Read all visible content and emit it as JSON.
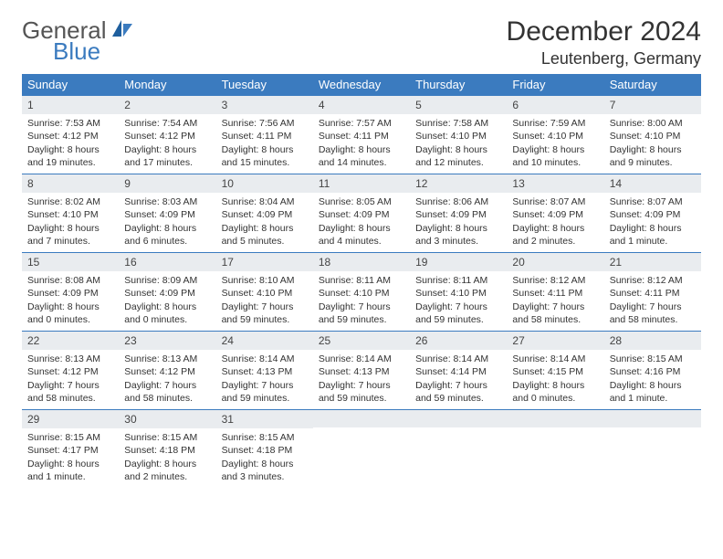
{
  "brand": {
    "top": "General",
    "bottom": "Blue"
  },
  "title": "December 2024",
  "location": "Leutenberg, Germany",
  "colors": {
    "header_bg": "#3b7bbf",
    "header_text": "#ffffff",
    "daynum_bg": "#e9ecef",
    "row_divider": "#3b7bbf",
    "body_text": "#333333",
    "page_bg": "#ffffff"
  },
  "weekdays": [
    "Sunday",
    "Monday",
    "Tuesday",
    "Wednesday",
    "Thursday",
    "Friday",
    "Saturday"
  ],
  "days": [
    {
      "n": "1",
      "sunrise": "Sunrise: 7:53 AM",
      "sunset": "Sunset: 4:12 PM",
      "daylight": "Daylight: 8 hours and 19 minutes."
    },
    {
      "n": "2",
      "sunrise": "Sunrise: 7:54 AM",
      "sunset": "Sunset: 4:12 PM",
      "daylight": "Daylight: 8 hours and 17 minutes."
    },
    {
      "n": "3",
      "sunrise": "Sunrise: 7:56 AM",
      "sunset": "Sunset: 4:11 PM",
      "daylight": "Daylight: 8 hours and 15 minutes."
    },
    {
      "n": "4",
      "sunrise": "Sunrise: 7:57 AM",
      "sunset": "Sunset: 4:11 PM",
      "daylight": "Daylight: 8 hours and 14 minutes."
    },
    {
      "n": "5",
      "sunrise": "Sunrise: 7:58 AM",
      "sunset": "Sunset: 4:10 PM",
      "daylight": "Daylight: 8 hours and 12 minutes."
    },
    {
      "n": "6",
      "sunrise": "Sunrise: 7:59 AM",
      "sunset": "Sunset: 4:10 PM",
      "daylight": "Daylight: 8 hours and 10 minutes."
    },
    {
      "n": "7",
      "sunrise": "Sunrise: 8:00 AM",
      "sunset": "Sunset: 4:10 PM",
      "daylight": "Daylight: 8 hours and 9 minutes."
    },
    {
      "n": "8",
      "sunrise": "Sunrise: 8:02 AM",
      "sunset": "Sunset: 4:10 PM",
      "daylight": "Daylight: 8 hours and 7 minutes."
    },
    {
      "n": "9",
      "sunrise": "Sunrise: 8:03 AM",
      "sunset": "Sunset: 4:09 PM",
      "daylight": "Daylight: 8 hours and 6 minutes."
    },
    {
      "n": "10",
      "sunrise": "Sunrise: 8:04 AM",
      "sunset": "Sunset: 4:09 PM",
      "daylight": "Daylight: 8 hours and 5 minutes."
    },
    {
      "n": "11",
      "sunrise": "Sunrise: 8:05 AM",
      "sunset": "Sunset: 4:09 PM",
      "daylight": "Daylight: 8 hours and 4 minutes."
    },
    {
      "n": "12",
      "sunrise": "Sunrise: 8:06 AM",
      "sunset": "Sunset: 4:09 PM",
      "daylight": "Daylight: 8 hours and 3 minutes."
    },
    {
      "n": "13",
      "sunrise": "Sunrise: 8:07 AM",
      "sunset": "Sunset: 4:09 PM",
      "daylight": "Daylight: 8 hours and 2 minutes."
    },
    {
      "n": "14",
      "sunrise": "Sunrise: 8:07 AM",
      "sunset": "Sunset: 4:09 PM",
      "daylight": "Daylight: 8 hours and 1 minute."
    },
    {
      "n": "15",
      "sunrise": "Sunrise: 8:08 AM",
      "sunset": "Sunset: 4:09 PM",
      "daylight": "Daylight: 8 hours and 0 minutes."
    },
    {
      "n": "16",
      "sunrise": "Sunrise: 8:09 AM",
      "sunset": "Sunset: 4:09 PM",
      "daylight": "Daylight: 8 hours and 0 minutes."
    },
    {
      "n": "17",
      "sunrise": "Sunrise: 8:10 AM",
      "sunset": "Sunset: 4:10 PM",
      "daylight": "Daylight: 7 hours and 59 minutes."
    },
    {
      "n": "18",
      "sunrise": "Sunrise: 8:11 AM",
      "sunset": "Sunset: 4:10 PM",
      "daylight": "Daylight: 7 hours and 59 minutes."
    },
    {
      "n": "19",
      "sunrise": "Sunrise: 8:11 AM",
      "sunset": "Sunset: 4:10 PM",
      "daylight": "Daylight: 7 hours and 59 minutes."
    },
    {
      "n": "20",
      "sunrise": "Sunrise: 8:12 AM",
      "sunset": "Sunset: 4:11 PM",
      "daylight": "Daylight: 7 hours and 58 minutes."
    },
    {
      "n": "21",
      "sunrise": "Sunrise: 8:12 AM",
      "sunset": "Sunset: 4:11 PM",
      "daylight": "Daylight: 7 hours and 58 minutes."
    },
    {
      "n": "22",
      "sunrise": "Sunrise: 8:13 AM",
      "sunset": "Sunset: 4:12 PM",
      "daylight": "Daylight: 7 hours and 58 minutes."
    },
    {
      "n": "23",
      "sunrise": "Sunrise: 8:13 AM",
      "sunset": "Sunset: 4:12 PM",
      "daylight": "Daylight: 7 hours and 58 minutes."
    },
    {
      "n": "24",
      "sunrise": "Sunrise: 8:14 AM",
      "sunset": "Sunset: 4:13 PM",
      "daylight": "Daylight: 7 hours and 59 minutes."
    },
    {
      "n": "25",
      "sunrise": "Sunrise: 8:14 AM",
      "sunset": "Sunset: 4:13 PM",
      "daylight": "Daylight: 7 hours and 59 minutes."
    },
    {
      "n": "26",
      "sunrise": "Sunrise: 8:14 AM",
      "sunset": "Sunset: 4:14 PM",
      "daylight": "Daylight: 7 hours and 59 minutes."
    },
    {
      "n": "27",
      "sunrise": "Sunrise: 8:14 AM",
      "sunset": "Sunset: 4:15 PM",
      "daylight": "Daylight: 8 hours and 0 minutes."
    },
    {
      "n": "28",
      "sunrise": "Sunrise: 8:15 AM",
      "sunset": "Sunset: 4:16 PM",
      "daylight": "Daylight: 8 hours and 1 minute."
    },
    {
      "n": "29",
      "sunrise": "Sunrise: 8:15 AM",
      "sunset": "Sunset: 4:17 PM",
      "daylight": "Daylight: 8 hours and 1 minute."
    },
    {
      "n": "30",
      "sunrise": "Sunrise: 8:15 AM",
      "sunset": "Sunset: 4:18 PM",
      "daylight": "Daylight: 8 hours and 2 minutes."
    },
    {
      "n": "31",
      "sunrise": "Sunrise: 8:15 AM",
      "sunset": "Sunset: 4:18 PM",
      "daylight": "Daylight: 8 hours and 3 minutes."
    }
  ]
}
